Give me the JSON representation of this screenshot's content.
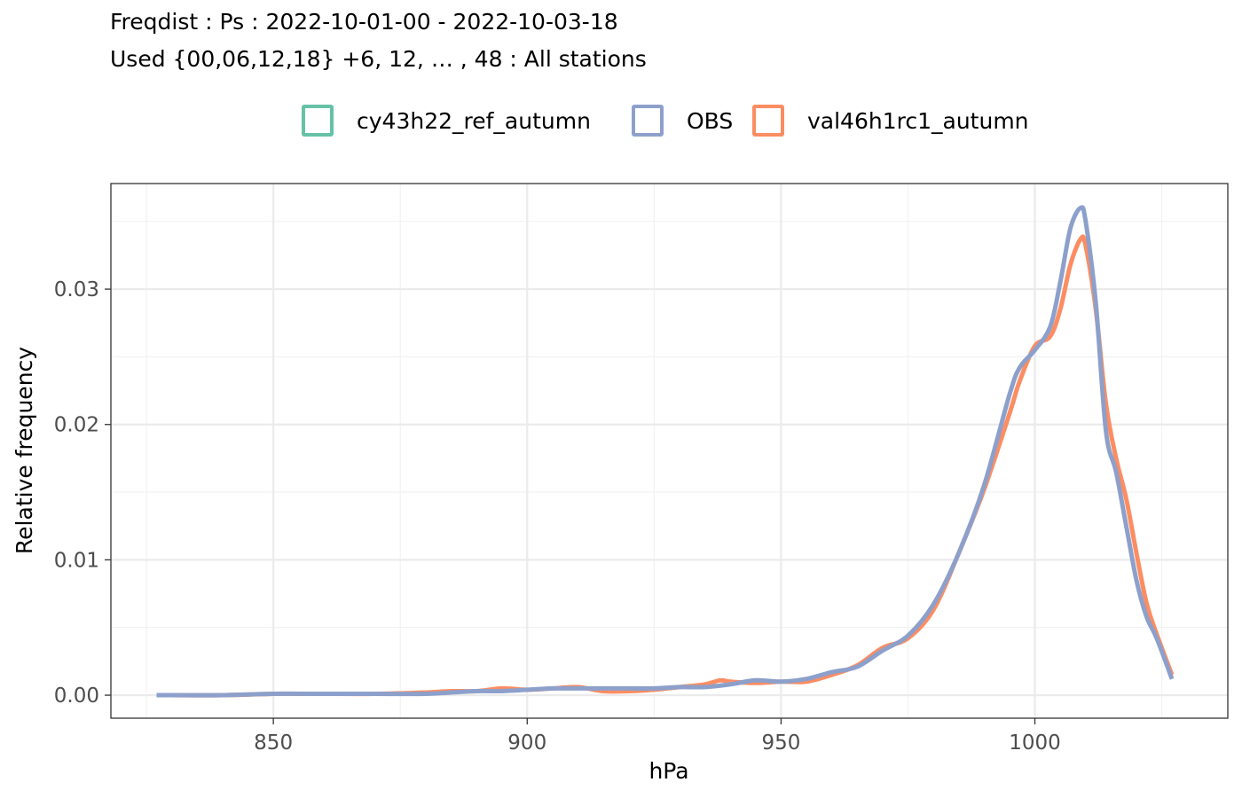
{
  "title_lines": [
    "Freqdist : Ps : 2022-10-01-00 - 2022-10-03-18",
    "Used {00,06,12,18} +6, 12, … , 48 : All stations"
  ],
  "chart_data": {
    "type": "line",
    "title": "Freqdist : Ps : 2022-10-01-00 - 2022-10-03-18",
    "subtitle": "Used {00,06,12,18} +6, 12, … , 48 : All stations",
    "xlabel": "hPa",
    "ylabel": "Relative frequency",
    "xlim": [
      818,
      1038
    ],
    "ylim": [
      -0.0017,
      0.0378
    ],
    "x_ticks": [
      850,
      900,
      950,
      1000
    ],
    "x_tick_labels": [
      "850",
      "900",
      "950",
      "1000"
    ],
    "y_ticks": [
      0.0,
      0.01,
      0.02,
      0.03
    ],
    "y_tick_labels": [
      "0.00",
      "0.01",
      "0.02",
      "0.03"
    ],
    "grid": true,
    "legend_position": "top",
    "series": [
      {
        "name": "cy43h22_ref_autumn",
        "color": "#66c2a5",
        "x": [],
        "y": []
      },
      {
        "name": "OBS",
        "color": "#8da0cb",
        "x": [
          827,
          840,
          850,
          860,
          870,
          880,
          885,
          890,
          895,
          900,
          905,
          910,
          915,
          920,
          925,
          930,
          935,
          940,
          945,
          950,
          955,
          960,
          965,
          970,
          975,
          980,
          985,
          990,
          995,
          997,
          1000,
          1003,
          1005,
          1007,
          1009,
          1010,
          1012,
          1014,
          1016,
          1018,
          1020,
          1022,
          1024,
          1027
        ],
        "y": [
          0.0,
          0.0,
          0.0001,
          0.0001,
          0.0001,
          0.0001,
          0.0002,
          0.0003,
          0.0003,
          0.0004,
          0.0005,
          0.0005,
          0.0005,
          0.0005,
          0.0005,
          0.0006,
          0.0006,
          0.0008,
          0.0011,
          0.001,
          0.0012,
          0.0017,
          0.0021,
          0.0033,
          0.0044,
          0.0067,
          0.0105,
          0.0155,
          0.0222,
          0.0242,
          0.0255,
          0.0272,
          0.0305,
          0.0345,
          0.036,
          0.035,
          0.029,
          0.0195,
          0.0165,
          0.0125,
          0.0085,
          0.0058,
          0.0042,
          0.0012
        ]
      },
      {
        "name": "val46h1rc1_autumn",
        "color": "#fc8d62",
        "x": [
          827,
          840,
          850,
          855,
          860,
          870,
          880,
          885,
          890,
          895,
          900,
          905,
          910,
          915,
          920,
          925,
          930,
          935,
          938,
          940,
          945,
          950,
          955,
          960,
          965,
          970,
          975,
          980,
          985,
          990,
          995,
          997,
          1000,
          1003,
          1005,
          1007,
          1009,
          1010,
          1012,
          1014,
          1016,
          1018,
          1020,
          1022,
          1024,
          1027
        ],
        "y": [
          0.0,
          0.0,
          0.0001,
          0.0001,
          0.0001,
          0.0001,
          0.0002,
          0.0003,
          0.0003,
          0.0005,
          0.0004,
          0.0005,
          0.0006,
          0.0003,
          0.0003,
          0.0004,
          0.0006,
          0.0008,
          0.0011,
          0.001,
          0.0009,
          0.001,
          0.001,
          0.0015,
          0.0022,
          0.0035,
          0.0042,
          0.0063,
          0.0105,
          0.0152,
          0.0208,
          0.0232,
          0.0258,
          0.0265,
          0.0285,
          0.0318,
          0.0337,
          0.0332,
          0.0285,
          0.0215,
          0.0175,
          0.0145,
          0.0105,
          0.0068,
          0.0045,
          0.0015
        ]
      }
    ]
  }
}
